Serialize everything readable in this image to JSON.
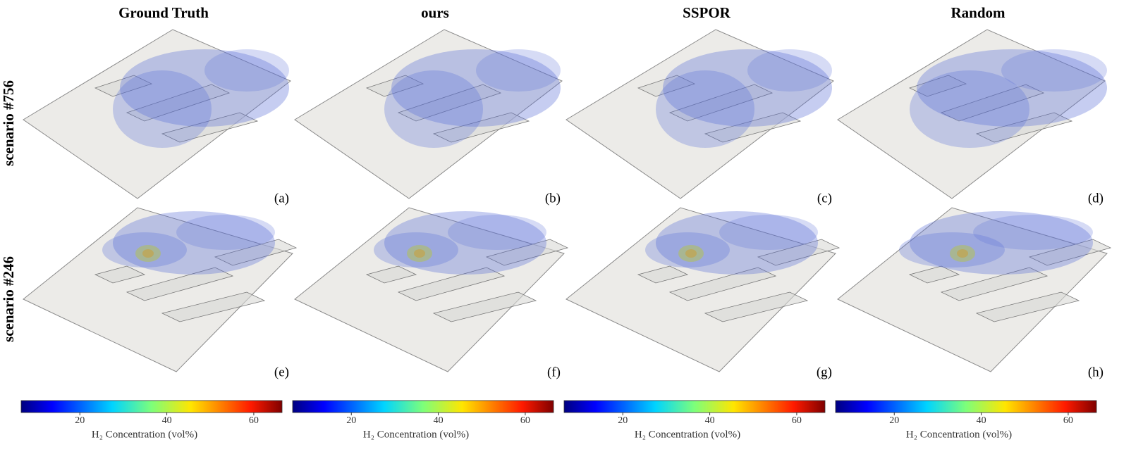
{
  "columns": [
    "Ground Truth",
    "ours",
    "SSPOR",
    "Random"
  ],
  "rows": [
    "scenario #756",
    "scenario #246"
  ],
  "panels": [
    [
      "(a)",
      "(b)",
      "(c)",
      "(d)"
    ],
    [
      "(e)",
      "(f)",
      "(g)",
      "(h)"
    ]
  ],
  "colorbar": {
    "lim": [
      6.5,
      66.5
    ],
    "ticks": [
      20,
      40,
      60
    ],
    "label": "H₂ Concentration (vol%)"
  }
}
